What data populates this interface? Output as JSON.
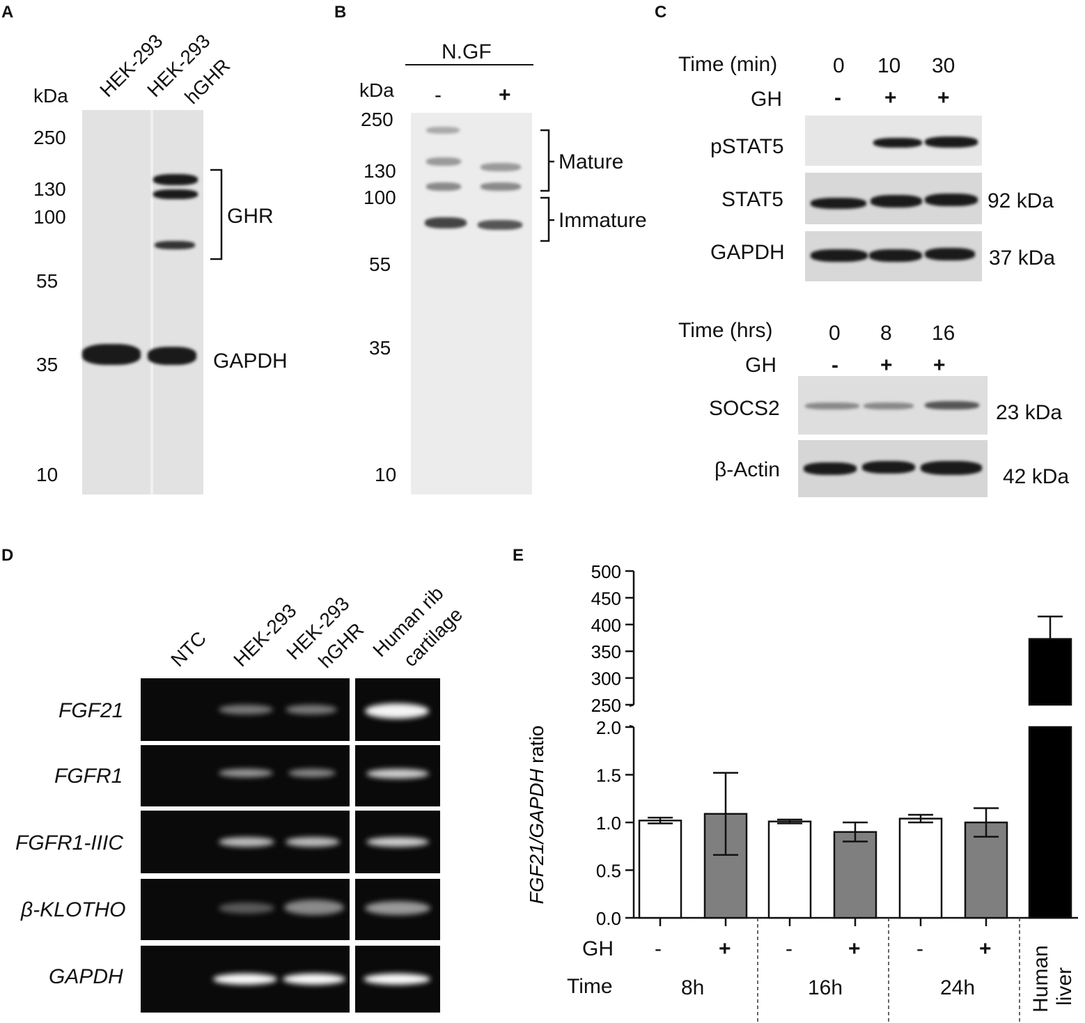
{
  "panels": {
    "A": "A",
    "B": "B",
    "C": "C",
    "D": "D",
    "E": "E"
  },
  "panelA": {
    "kda_label": "kDa",
    "lanes": [
      "HEK-293",
      "HEK-293",
      "hGHR"
    ],
    "markers": [
      "250",
      "130",
      "100",
      "55",
      "35",
      "10"
    ],
    "ghr_label": "GHR",
    "gapdh_label": "GAPDH"
  },
  "panelB": {
    "header": "N.GF",
    "kda_label": "kDa",
    "lanes": [
      "-",
      "+"
    ],
    "markers": [
      "250",
      "130",
      "100",
      "55",
      "35",
      "10"
    ],
    "mature": "Mature",
    "immature": "Immature"
  },
  "panelC": {
    "time_min_label": "Time (min)",
    "times_min": [
      "0",
      "10",
      "30"
    ],
    "gh_label": "GH",
    "gh_signs_top": [
      "-",
      "+",
      "+"
    ],
    "rows_top": [
      "pSTAT5",
      "STAT5",
      "GAPDH"
    ],
    "sizes_top": [
      "92 kDa",
      "37 kDa"
    ],
    "time_hrs_label": "Time (hrs)",
    "times_hrs": [
      "0",
      "8",
      "16"
    ],
    "gh_signs_bottom": [
      "-",
      "+",
      "+"
    ],
    "rows_bottom": [
      "SOCS2",
      "β-Actin"
    ],
    "sizes_bottom": [
      "23 kDa",
      "42 kDa"
    ]
  },
  "panelD": {
    "lanes": [
      "NTC",
      "HEK-293",
      "HEK-293",
      "hGHR",
      "Human rib",
      "cartilage"
    ],
    "genes": [
      "FGF21",
      "FGFR1",
      "FGFR1-IIIC",
      "β-KLOTHO",
      "GAPDH"
    ]
  },
  "panelE": {
    "ylabel_italic": "FGF21/GAPDH",
    "ylabel_rest": " ratio",
    "gh_label": "GH",
    "time_label": "Time",
    "gh_signs": [
      "-",
      "+",
      "-",
      "+",
      "-",
      "+"
    ],
    "time_groups": [
      "8h",
      "16h",
      "24h"
    ],
    "liver_label": [
      "Human",
      "liver"
    ]
  },
  "chart_data": {
    "type": "bar",
    "categories": [
      "8h -",
      "8h +",
      "16h -",
      "16h +",
      "24h -",
      "24h +",
      "Human liver"
    ],
    "values": [
      1.02,
      1.09,
      1.01,
      0.9,
      1.04,
      1.0,
      373
    ],
    "errors": [
      0.03,
      0.43,
      0.02,
      0.1,
      0.04,
      0.15,
      42
    ],
    "colors": [
      "#ffffff",
      "#7f7f7f",
      "#ffffff",
      "#7f7f7f",
      "#ffffff",
      "#7f7f7f",
      "#000000"
    ],
    "ylabel": "FGF21/GAPDH ratio",
    "axis_break": true,
    "lower_ticks": [
      "0.0",
      "0.5",
      "1.0",
      "1.5",
      "2.0"
    ],
    "upper_ticks": [
      "250",
      "300",
      "350",
      "400",
      "450",
      "500"
    ],
    "ylim_lower": [
      0,
      2
    ],
    "ylim_upper": [
      250,
      500
    ]
  }
}
